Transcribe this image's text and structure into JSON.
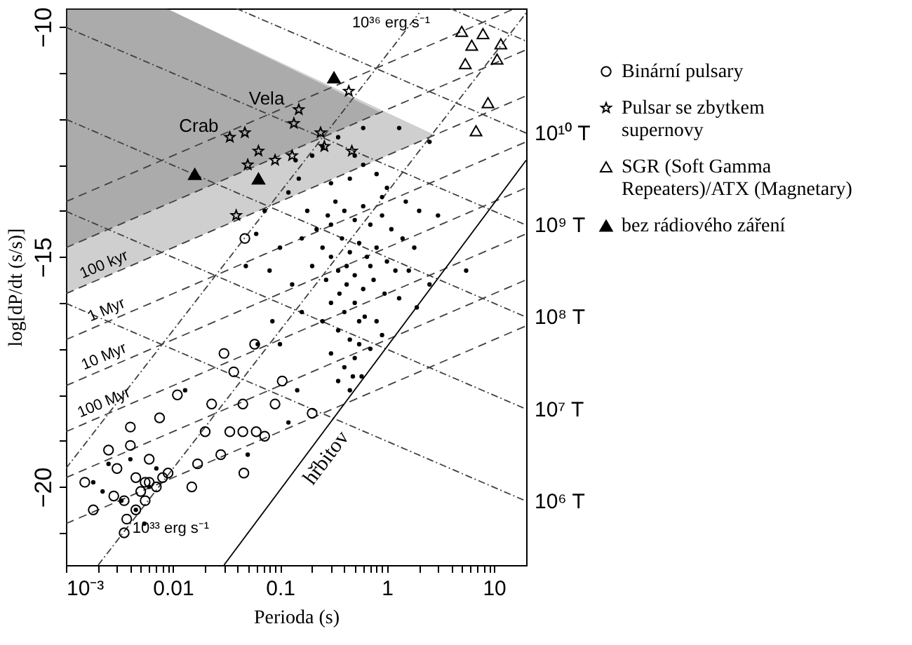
{
  "chart_data": {
    "type": "scatter",
    "xlabel": "Perioda (s)",
    "ylabel": "log[dP/dt (s/s)]",
    "log": "x",
    "grid": false,
    "legend": "right",
    "xlim": [
      0.001,
      20
    ],
    "ylim": [
      -21.7,
      -9.6
    ],
    "xticks": [
      {
        "value": 0.001,
        "label": "10⁻³"
      },
      {
        "value": 0.002,
        "label": null
      },
      {
        "value": 0.003,
        "label": null
      },
      {
        "value": 0.004,
        "label": null
      },
      {
        "value": 0.005,
        "label": null
      },
      {
        "value": 0.006,
        "label": null
      },
      {
        "value": 0.007,
        "label": null
      },
      {
        "value": 0.008,
        "label": null
      },
      {
        "value": 0.009,
        "label": null
      },
      0.01,
      {
        "value": 0.02,
        "label": null
      },
      {
        "value": 0.03,
        "label": null
      },
      {
        "value": 0.04,
        "label": null
      },
      {
        "value": 0.05,
        "label": null
      },
      {
        "value": 0.06,
        "label": null
      },
      {
        "value": 0.07,
        "label": null
      },
      {
        "value": 0.08,
        "label": null
      },
      {
        "value": 0.09,
        "label": null
      },
      0.1,
      {
        "value": 0.2,
        "label": null
      },
      {
        "value": 0.3,
        "label": null
      },
      {
        "value": 0.4,
        "label": null
      },
      {
        "value": 0.5,
        "label": null
      },
      {
        "value": 0.6,
        "label": null
      },
      {
        "value": 0.7,
        "label": null
      },
      {
        "value": 0.8,
        "label": null
      },
      {
        "value": 0.9,
        "label": null
      },
      1,
      {
        "value": 2,
        "label": null
      },
      {
        "value": 3,
        "label": null
      },
      {
        "value": 4,
        "label": null
      },
      {
        "value": 5,
        "label": null
      },
      {
        "value": 6,
        "label": null
      },
      {
        "value": 7,
        "label": null
      },
      {
        "value": 8,
        "label": null
      },
      {
        "value": 9,
        "label": null
      },
      10
    ],
    "yticks": [
      {
        "value": -10,
        "label": "−10"
      },
      {
        "value": -11,
        "label": null
      },
      {
        "value": -12,
        "label": null
      },
      {
        "value": -13,
        "label": null
      },
      {
        "value": -14,
        "label": null
      },
      {
        "value": -15,
        "label": "−15"
      },
      {
        "value": -16,
        "label": null
      },
      {
        "value": -17,
        "label": null
      },
      {
        "value": -18,
        "label": null
      },
      {
        "value": -19,
        "label": null
      },
      {
        "value": -20,
        "label": "−20"
      },
      {
        "value": -21,
        "label": null
      }
    ],
    "annotations": [
      {
        "text": "Crab",
        "x": 0.034,
        "y": -12.4
      },
      {
        "text": "Vela",
        "x": 0.09,
        "y": -12.9
      },
      {
        "text": "10³⁶ erg s⁻¹",
        "x": 2.0,
        "y": -9.7
      },
      {
        "text": "10³³ erg s⁻¹",
        "x": 0.0037,
        "y": -20.9
      },
      {
        "text": "100 kyr",
        "x": 0.0025,
        "y": -15.4
      },
      {
        "text": "1 Myr",
        "x": 0.0018,
        "y": -16.55
      },
      {
        "text": "10 Myr",
        "x": 0.0025,
        "y": -17.4
      },
      {
        "text": "100 Myr",
        "x": 0.0025,
        "y": -18.4
      },
      {
        "text": "hřbitov",
        "x": 0.2,
        "y": -19.14
      },
      {
        "text": "10¹⁰ T",
        "x": 20,
        "y": -12.31
      },
      {
        "text": "10⁹ T",
        "x": 20,
        "y": -14.31
      },
      {
        "text": "10⁸ T",
        "x": 20,
        "y": -16.31
      },
      {
        "text": "10⁷ T",
        "x": 20,
        "y": -18.31
      },
      {
        "text": "10⁶ T",
        "x": 20,
        "y": -20.31
      }
    ],
    "series": [
      {
        "type": "line",
        "line_style": "dashed",
        "color": "#404040",
        "x": [
          0.001,
          15.8
        ],
        "values": [
          -13.8,
          -9.6
        ]
      },
      {
        "type": "line",
        "line_style": "dashed",
        "color": "#404040",
        "x": [
          0.001,
          0.0087,
          0.87,
          20
        ],
        "values": [
          -14.8,
          -13.86,
          -11.86,
          -10.5
        ],
        "lower": [
          -14.8,
          -13.86,
          -11.86,
          null
        ],
        "upper": [
          -9.6,
          -9.6,
          -11.86,
          null
        ]
      },
      {
        "type": "line",
        "line_style": "dashed",
        "color": "#404040",
        "x": [
          0.001,
          0.0087,
          0.87,
          2.8,
          20
        ],
        "values": [
          -15.8,
          -14.86,
          -12.86,
          -12.35,
          -11.5
        ],
        "lower": [
          -15.8,
          -14.86,
          -12.86,
          -12.35,
          null
        ],
        "upper": [
          -9.6,
          -9.6,
          -11.8,
          -12.35,
          null
        ]
      },
      {
        "type": "line",
        "line_style": "dashed",
        "color": "#404040",
        "x": [
          0.001,
          20
        ],
        "values": [
          -16.8,
          -12.5
        ]
      },
      {
        "type": "line",
        "line_style": "dashed",
        "color": "#404040",
        "x": [
          0.001,
          20
        ],
        "values": [
          -17.8,
          -13.5
        ]
      },
      {
        "type": "line",
        "line_style": "dashed",
        "color": "#404040",
        "x": [
          0.001,
          20
        ],
        "values": [
          -18.8,
          -14.5
        ]
      },
      {
        "type": "line",
        "line_style": "dashed",
        "color": "#404040",
        "x": [
          0.001,
          20
        ],
        "values": [
          -19.8,
          -15.5
        ]
      },
      {
        "type": "line",
        "line_style": "dashed",
        "color": "#404040",
        "x": [
          0.001,
          20
        ],
        "values": [
          -20.8,
          -16.5
        ]
      },
      {
        "type": "line",
        "line_style": "dotted",
        "color": "#404040",
        "x": [
          0.001,
          20
        ],
        "values": [
          -16.01,
          -20.31
        ]
      },
      {
        "type": "line",
        "line_style": "dotted",
        "color": "#404040",
        "x": [
          0.001,
          20
        ],
        "values": [
          -14.01,
          -18.31
        ]
      },
      {
        "type": "line",
        "line_style": "dotted",
        "color": "#404040",
        "x": [
          0.001,
          20
        ],
        "values": [
          -12.01,
          -16.31
        ]
      },
      {
        "type": "line",
        "line_style": "dotted",
        "color": "#404040",
        "x": [
          0.001,
          20
        ],
        "values": [
          -10.01,
          -14.31
        ]
      },
      {
        "type": "line",
        "line_style": "dotted",
        "color": "#404040",
        "x": [
          0.039,
          20
        ],
        "values": [
          -9.6,
          -12.31
        ]
      },
      {
        "type": "line",
        "line_style": "dotted",
        "color": "#404040",
        "x": [
          3.9,
          20
        ],
        "values": [
          -9.6,
          -10.31
        ]
      },
      {
        "type": "line",
        "line_style": "dotted",
        "color": "#404040",
        "x": [
          0.002,
          20
        ],
        "values": [
          -21.7,
          -9.7
        ]
      },
      {
        "type": "line",
        "line_style": "dotted",
        "color": "#404040",
        "x": [
          0.001,
          2.0
        ],
        "values": [
          -19.6,
          -9.7
        ]
      },
      {
        "type": "line",
        "line_style": "solid",
        "color": "#000000",
        "x": [
          0.03,
          20
        ],
        "values": [
          -21.7,
          -12.9
        ]
      },
      {
        "marker": "circle",
        "color": "#000000",
        "x": [
          0.2,
          0.25,
          0.35,
          0.5,
          0.6,
          1.3,
          2.5,
          0.8,
          0.15,
          0.12,
          0.3,
          0.45,
          1.0,
          1.5,
          2.0,
          3.0,
          5.5,
          0.18,
          0.22,
          0.28,
          0.33,
          0.4,
          0.5,
          0.6,
          0.7,
          0.9,
          1.1,
          1.4,
          1.8,
          0.25,
          0.3,
          0.38,
          0.45,
          0.55,
          0.65,
          0.8,
          1.0,
          1.2,
          0.2,
          0.27,
          0.35,
          0.42,
          0.5,
          0.6,
          0.75,
          0.95,
          1.3,
          0.3,
          0.4,
          0.5,
          0.62,
          0.8,
          0.25,
          0.35,
          0.45,
          0.55,
          0.7,
          0.3,
          0.4,
          0.5,
          0.9,
          0.16,
          0.13,
          0.1,
          0.08,
          0.085,
          0.1,
          0.062,
          0.35,
          0.45,
          0.58,
          1.6,
          1.9,
          2.5,
          0.9,
          0.16,
          0.14,
          0.6,
          0.072,
          0.06,
          0.048,
          0.3,
          0.42,
          0.7,
          0.55,
          0.36,
          0.145,
          0.48,
          0.0018,
          0.0025,
          0.004,
          0.0045,
          0.0054,
          0.007,
          0.013,
          0.05,
          0.12,
          0.0022,
          0.0033,
          0.006
        ],
        "values": [
          -12.8,
          -12.6,
          -12.4,
          -12.8,
          -13.0,
          -12.2,
          -12.5,
          -13.2,
          -13.3,
          -13.6,
          -13.4,
          -13.3,
          -13.5,
          -13.8,
          -14.0,
          -14.1,
          -15.3,
          -14.0,
          -14.4,
          -14.1,
          -13.8,
          -14.0,
          -14.2,
          -13.9,
          -14.3,
          -14.1,
          -14.4,
          -14.6,
          -14.8,
          -14.8,
          -15.0,
          -14.6,
          -14.9,
          -14.7,
          -15.0,
          -14.8,
          -15.1,
          -15.3,
          -15.2,
          -15.5,
          -15.3,
          -15.6,
          -15.4,
          -15.7,
          -15.5,
          -15.8,
          -15.9,
          -16.0,
          -16.2,
          -16.0,
          -16.3,
          -16.4,
          -16.4,
          -16.6,
          -16.8,
          -16.9,
          -17.0,
          -17.1,
          -17.4,
          -17.2,
          -16.7,
          -16.2,
          -15.6,
          -14.8,
          -15.3,
          -16.4,
          -16.9,
          -16.9,
          -17.7,
          -17.9,
          -17.6,
          -15.3,
          -16.1,
          -15.6,
          -13.7,
          -14.6,
          -12.9,
          -12.2,
          -14.0,
          -14.5,
          -15.2,
          -14.3,
          -15.2,
          -15.2,
          -16.4,
          -15.8,
          -17.9,
          -17.6,
          -19.9,
          -19.5,
          -19.4,
          -20.5,
          -20.8,
          -19.6,
          -17.9,
          -19.3,
          -18.6,
          -20.1,
          -20.3,
          -20.0
        ]
      },
      {
        "name": "Binární pulsary",
        "marker": "circle",
        "color": "#000000",
        "x": [
          0.0015,
          0.0018,
          0.0025,
          0.003,
          0.0035,
          0.0037,
          0.0035,
          0.004,
          0.004,
          0.0045,
          0.005,
          0.0055,
          0.006,
          0.006,
          0.007,
          0.0075,
          0.008,
          0.009,
          0.011,
          0.015,
          0.017,
          0.02,
          0.023,
          0.028,
          0.034,
          0.037,
          0.045,
          0.045,
          0.046,
          0.058,
          0.03,
          0.06,
          0.072,
          0.09,
          0.105,
          0.2,
          0.0045,
          0.0055,
          0.047,
          0.0028
        ],
        "values": [
          -19.9,
          -20.5,
          -19.2,
          -19.6,
          -20.3,
          -20.7,
          -21.0,
          -18.7,
          -19.1,
          -19.8,
          -20.1,
          -19.9,
          -19.4,
          -19.9,
          -20.0,
          -18.5,
          -19.8,
          -19.7,
          -18.0,
          -20.0,
          -19.5,
          -18.8,
          -18.2,
          -19.3,
          -18.8,
          -17.5,
          -18.2,
          -18.8,
          -19.7,
          -16.9,
          -17.1,
          -18.8,
          -18.9,
          -18.2,
          -17.7,
          -18.4,
          -20.5,
          -20.3,
          -14.6,
          -20.2
        ]
      },
      {
        "name": "Pulsar se zbytkem supernovy",
        "marker": "star",
        "color": "#000000",
        "x": [
          0.44,
          0.15,
          0.135,
          0.24,
          0.047,
          0.034,
          0.063,
          0.26,
          0.13,
          0.09,
          0.05,
          0.47,
          0.039
        ],
        "values": [
          -11.4,
          -11.8,
          -12.1,
          -12.3,
          -12.3,
          -12.4,
          -12.7,
          -12.6,
          -12.8,
          -12.9,
          -13.0,
          -12.7,
          -14.1
        ]
      },
      {
        "name": "SGR (Soft Gamma Repeaters)/ATX (Magnetary)",
        "marker": "triangle",
        "color": "#000000",
        "x": [
          5.0,
          7.9,
          6.2,
          11.6,
          10.7,
          5.4,
          8.8,
          6.8
        ],
        "values": [
          -10.1,
          -10.15,
          -10.4,
          -10.37,
          -10.7,
          -10.8,
          -11.65,
          -12.26
        ]
      },
      {
        "name": "bez rádiového záření",
        "marker": "triangle",
        "color": "#000000",
        "x": [
          0.32,
          0.016,
          0.063
        ],
        "values": [
          -11.1,
          -13.2,
          -13.3
        ]
      }
    ]
  }
}
